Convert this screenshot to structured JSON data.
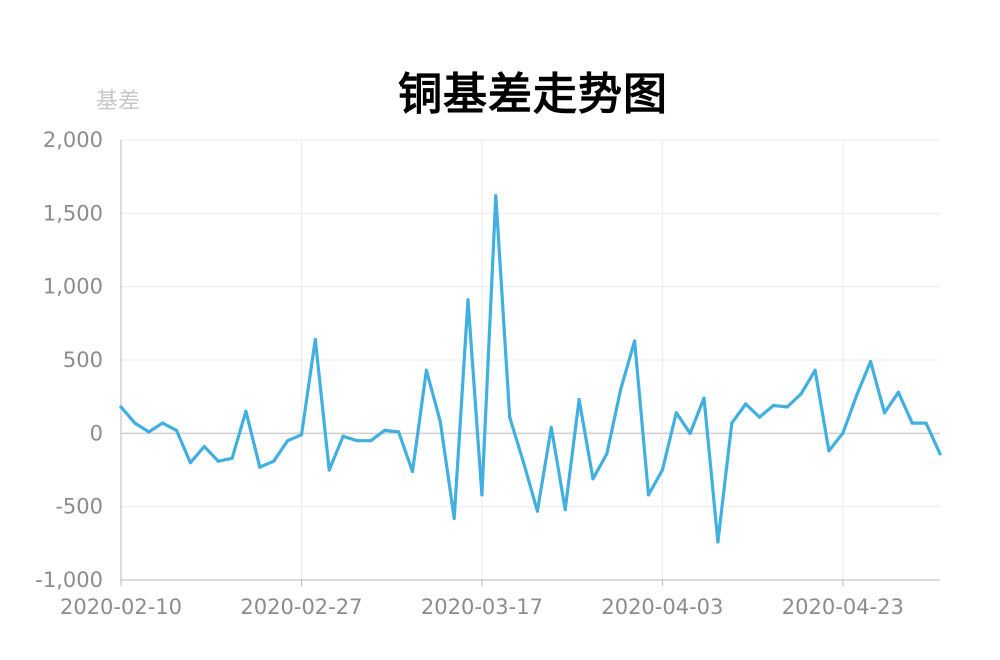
{
  "chart_data": {
    "type": "line",
    "title": "铜基差走势图",
    "ylabel": "基差",
    "xlabel": "",
    "ylim": [
      -1000,
      2000
    ],
    "yticks": [
      -1000,
      -500,
      0,
      500,
      1000,
      1500,
      2000
    ],
    "ytick_labels": [
      "-1,000",
      "-500",
      "0",
      "500",
      "1,000",
      "1,500",
      "2,000"
    ],
    "xtick_labels": [
      "2020-02-10",
      "2020-02-27",
      "2020-03-17",
      "2020-04-03",
      "2020-04-23"
    ],
    "xtick_indices": [
      0,
      13,
      26,
      39,
      52
    ],
    "grid": true,
    "legend": "none",
    "series": [
      {
        "color": "#41b0e0",
        "values": [
          180,
          70,
          10,
          70,
          20,
          -200,
          -90,
          -190,
          -170,
          150,
          -230,
          -190,
          -50,
          -10,
          640,
          -250,
          -20,
          -50,
          -50,
          20,
          10,
          -260,
          430,
          80,
          -580,
          910,
          -420,
          1620,
          110,
          -200,
          -530,
          40,
          -520,
          230,
          -310,
          -140,
          300,
          630,
          -420,
          -250,
          140,
          0,
          240,
          -740,
          70,
          200,
          110,
          190,
          180,
          270,
          430,
          -120,
          0,
          260,
          490,
          140,
          280,
          70,
          70,
          -140
        ]
      }
    ]
  }
}
